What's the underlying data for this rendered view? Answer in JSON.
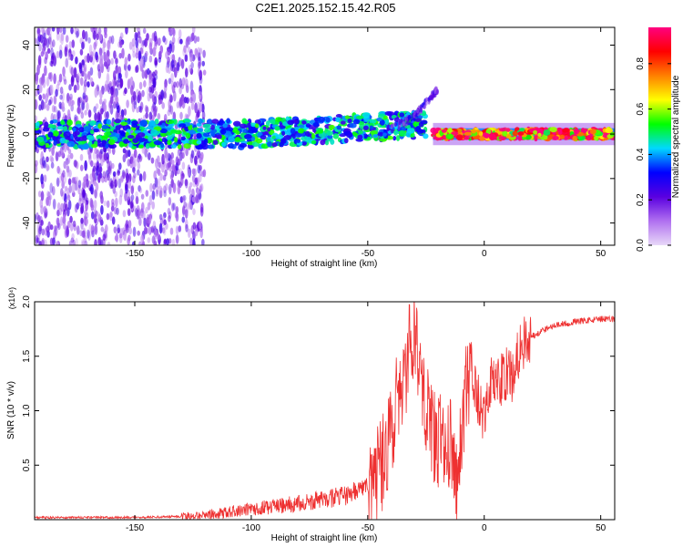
{
  "title": "C2E1.2025.152.15.42.R05",
  "chart_data": [
    {
      "type": "heatmap",
      "title": "C2E1.2025.152.15.42.R05",
      "xlabel": "Height of straight line (km)",
      "ylabel": "Frequency (Hz)",
      "xlim": [
        -193,
        56
      ],
      "ylim": [
        -50,
        48
      ],
      "xticks": [
        -150,
        -100,
        -50,
        0,
        50
      ],
      "yticks": [
        -40,
        -20,
        0,
        20,
        40
      ],
      "colorbar": {
        "label": "Normalized spectral amplitude",
        "range": [
          0,
          0.96
        ],
        "ticks": [
          0.0,
          0.2,
          0.4,
          0.6,
          0.8
        ],
        "colormap": [
          "#e8d8f8",
          "#b070f0",
          "#5a00e0",
          "#0000ff",
          "#00d8ff",
          "#00ff00",
          "#ffff00",
          "#ff8000",
          "#ff0000",
          "#ff0080"
        ]
      },
      "grid": false,
      "description_features": [
        {
          "kind": "scatter-cloud",
          "x_range": [
            -193,
            -120
          ],
          "freq_range": [
            -50,
            48
          ],
          "level": 0.1
        },
        {
          "kind": "band",
          "x_range": [
            -193,
            -25
          ],
          "freq_center": 0,
          "freq_halfwidth": 6,
          "level": 0.45
        },
        {
          "kind": "rising-branch",
          "x": [
            -40,
            -30,
            -25,
            -20
          ],
          "freq": [
            2,
            8,
            14,
            20
          ],
          "level": 0.2
        },
        {
          "kind": "band",
          "x_range": [
            -22,
            56
          ],
          "freq_center": 0,
          "freq_halfwidth": 2,
          "level": 0.9
        }
      ]
    },
    {
      "type": "line",
      "xlabel": "Height of straight line (km)",
      "ylabel": "SNR (10 * v/v)",
      "yscale_label": "(x10⁴)",
      "xlim": [
        -193,
        56
      ],
      "ylim": [
        0,
        2.0
      ],
      "xticks": [
        -150,
        -100,
        -50,
        0,
        50
      ],
      "yticks": [
        0.5,
        1.0,
        1.5,
        2.0
      ],
      "color": "#ee3030",
      "grid": false,
      "series": [
        {
          "x": [
            -193,
            -170,
            -150,
            -130,
            -120,
            -110,
            -100,
            -90,
            -80,
            -70,
            -60,
            -55,
            -50,
            -45,
            -42,
            -40,
            -38,
            -36,
            -34,
            -32,
            -30,
            -28,
            -26,
            -24,
            -22,
            -20,
            -18,
            -16,
            -14,
            -12,
            -10,
            -8,
            -6,
            -4,
            -2,
            0,
            2,
            4,
            6,
            8,
            10,
            12,
            14,
            16,
            18,
            20,
            22,
            25,
            30,
            35,
            40,
            45,
            50,
            56
          ],
          "y": [
            0.02,
            0.02,
            0.02,
            0.03,
            0.04,
            0.07,
            0.1,
            0.12,
            0.15,
            0.18,
            0.22,
            0.26,
            0.32,
            0.45,
            0.6,
            0.8,
            1.05,
            1.2,
            1.35,
            1.55,
            1.8,
            1.5,
            1.2,
            0.95,
            0.8,
            0.7,
            0.75,
            0.85,
            0.6,
            0.25,
            0.8,
            1.15,
            1.25,
            1.2,
            1.05,
            0.9,
            1.2,
            1.3,
            1.25,
            1.3,
            1.35,
            1.3,
            1.5,
            1.6,
            1.65,
            1.68,
            1.7,
            1.74,
            1.78,
            1.8,
            1.82,
            1.83,
            1.84,
            1.84
          ]
        }
      ]
    }
  ]
}
